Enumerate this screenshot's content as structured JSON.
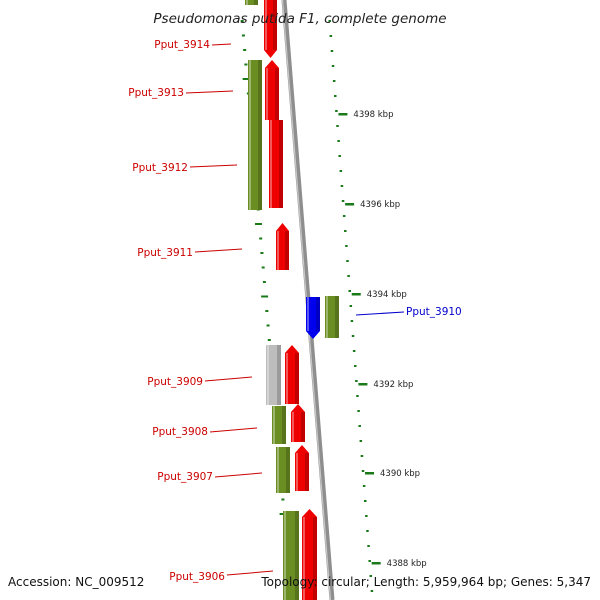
{
  "title": "Pseudomonas putida F1, complete genome",
  "accession": "Accession: NC_009512",
  "topology": "Topology: circular; Length: 5,959,964 bp; Genes: 5,347",
  "colors": {
    "backbone": "#8e8e8e",
    "gene_red": "#ee0000",
    "gene_green": "#6b8e23",
    "gene_gray": "#bdbdbd",
    "gene_blue": "#0000ee",
    "tick": "#1a7a1a",
    "label_red": "#cc0000",
    "label_blue": "#0000cc"
  },
  "position_ticks": [
    {
      "label": "4398 kbp"
    },
    {
      "label": "4396 kbp"
    },
    {
      "label": "4394 kbp"
    },
    {
      "label": "4392 kbp"
    },
    {
      "label": "4390 kbp"
    },
    {
      "label": "4388 kbp"
    }
  ],
  "gene_labels": [
    {
      "name": "Pput_3914",
      "color": "red"
    },
    {
      "name": "Pput_3913",
      "color": "red"
    },
    {
      "name": "Pput_3912",
      "color": "red"
    },
    {
      "name": "Pput_3911",
      "color": "red"
    },
    {
      "name": "Pput_3910",
      "color": "blue"
    },
    {
      "name": "Pput_3909",
      "color": "red"
    },
    {
      "name": "Pput_3908",
      "color": "red"
    },
    {
      "name": "Pput_3907",
      "color": "red"
    },
    {
      "name": "Pput_3906",
      "color": "red"
    }
  ]
}
